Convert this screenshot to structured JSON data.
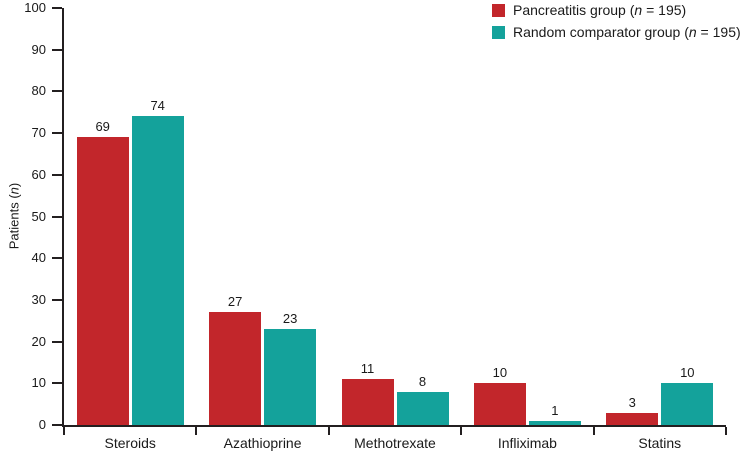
{
  "chart_data": {
    "type": "bar",
    "title": "",
    "categories": [
      "Steroids",
      "Azathioprine",
      "Methotrexate",
      "Infliximab",
      "Statins"
    ],
    "series": [
      {
        "name": "Pancreatitis group (n = 195)",
        "name_prefix": "Pancreatitis group (",
        "name_italic": "n",
        "name_suffix": " = 195)",
        "color": "#C2262B",
        "values": [
          69,
          27,
          11,
          10,
          3
        ]
      },
      {
        "name": "Random comparator group (n = 195)",
        "name_prefix": "Random comparator group (",
        "name_italic": "n",
        "name_suffix": " = 195)",
        "color": "#14A29B",
        "values": [
          74,
          23,
          8,
          1,
          10
        ]
      }
    ],
    "xlabel": "",
    "ylabel": "Patients (n)",
    "ylabel_prefix": "Patients (",
    "ylabel_italic": "n",
    "ylabel_suffix": ")",
    "ylim": [
      0,
      100
    ],
    "yticks": [
      0,
      10,
      20,
      30,
      40,
      50,
      60,
      70,
      80,
      90,
      100
    ],
    "grid": "off",
    "legend_position": "top-right"
  }
}
